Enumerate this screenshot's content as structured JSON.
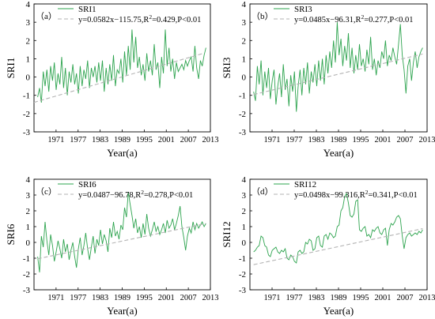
{
  "colors": {
    "series": "#2ea44f",
    "trend": "#b3b3b3",
    "axis": "#000000"
  },
  "chart_data": [
    {
      "type": "line",
      "panel_label": "（a）",
      "xlabel": "Year(a)",
      "ylabel": "SRI1",
      "xlim": [
        1965,
        2013
      ],
      "ylim": [
        -3,
        4
      ],
      "xticks": [
        1971,
        1977,
        1983,
        1989,
        1995,
        2001,
        2007,
        2013
      ],
      "yticks": [
        -3,
        -2,
        -1,
        0,
        1,
        2,
        3,
        4
      ],
      "legend": {
        "placement": "top-left",
        "series_name": "SRI1",
        "trend_name_main": "y=0.0582x−115.75,R",
        "trend_name_sup": "2",
        "trend_name_tail": "=0.429,P<0.01"
      },
      "trend": {
        "slope": 0.0582,
        "intercept": -115.75,
        "x_start": 1965,
        "x_end": 2011
      },
      "series": [
        {
          "name": "SRI1",
          "x_start": 1966,
          "x_end": 2011.8,
          "step": 0.5,
          "values": [
            -1.1,
            -0.6,
            -1.4,
            0.3,
            -0.5,
            0.4,
            -0.8,
            0.6,
            -0.2,
            0.8,
            -0.7,
            0.2,
            -0.4,
            1.1,
            -0.6,
            0.5,
            -1.0,
            0.3,
            -0.3,
            0.7,
            -0.4,
            0.2,
            -0.9,
            0.6,
            -0.5,
            0.4,
            -0.1,
            0.9,
            -0.6,
            0.5,
            0.0,
            0.6,
            -0.3,
            0.8,
            -0.2,
            0.9,
            -0.8,
            0.5,
            -0.4,
            0.7,
            -0.2,
            1.2,
            -0.5,
            0.4,
            0.2,
            1.0,
            -0.3,
            1.4,
            0.1,
            1.7,
            0.4,
            2.6,
            0.8,
            2.2,
            0.5,
            1.1,
            0.1,
            0.7,
            -0.2,
            1.3,
            0.3,
            0.9,
            0.1,
            1.8,
            0.4,
            0.8,
            -0.6,
            1.1,
            0.2,
            2.6,
            0.6,
            1.6,
            0.3,
            1.0,
            -0.1,
            0.8,
            0.3,
            0.5,
            0.7,
            0.4,
            0.9,
            0.6,
            0.9,
            1.1,
            0.3,
            1.7,
            0.5,
            -0.1,
            0.9,
            0.6,
            1.2,
            1.6
          ]
        }
      ]
    },
    {
      "type": "line",
      "panel_label": "（b）",
      "xlabel": "Year(a)",
      "ylabel": "SRI3",
      "xlim": [
        1965,
        2013
      ],
      "ylim": [
        -3,
        4
      ],
      "xticks": [
        1971,
        1977,
        1983,
        1989,
        1995,
        2001,
        2007,
        2013
      ],
      "yticks": [
        -3,
        -2,
        -1,
        0,
        1,
        2,
        3,
        4
      ],
      "legend": {
        "placement": "top-left",
        "series_name": "SRI3",
        "trend_name_main": "y=0.0485x−96.31,R",
        "trend_name_sup": "2",
        "trend_name_tail": "=0.277,P<0.01"
      },
      "trend": {
        "slope": 0.0485,
        "intercept": -96.31,
        "x_start": 1966,
        "x_end": 2011.8
      },
      "series": [
        {
          "name": "SRI3",
          "x_start": 1966,
          "x_end": 2011.8,
          "step": 0.5,
          "values": [
            -0.8,
            -1.3,
            0.6,
            -0.4,
            0.9,
            -1.0,
            0.3,
            -0.6,
            0.5,
            -1.2,
            -0.2,
            0.4,
            -1.5,
            -0.5,
            0.2,
            -1.1,
            0.7,
            -0.7,
            -0.1,
            -1.6,
            0.1,
            -0.8,
            0.3,
            -1.9,
            -0.5,
            0.4,
            -1.0,
            0.5,
            -0.4,
            0.8,
            -0.9,
            0.3,
            -0.3,
            0.7,
            -0.5,
            0.9,
            -0.2,
            1.0,
            -0.4,
            1.2,
            0.2,
            1.4,
            0.5,
            2.0,
            0.8,
            3.0,
            1.2,
            2.1,
            0.6,
            1.7,
            0.9,
            2.4,
            0.5,
            1.6,
            0.2,
            1.2,
            0.4,
            1.8,
            0.6,
            1.0,
            0.3,
            1.5,
            0.7,
            2.2,
            0.4,
            1.0,
            0.1,
            0.9,
            0.5,
            1.4,
            1.0,
            2.0,
            0.6,
            1.2,
            0.9,
            1.6,
            1.1,
            0.7,
            1.8,
            2.9,
            1.2,
            0.4,
            -0.9,
            0.6,
            1.0,
            -0.2,
            0.8,
            1.4,
            0.5,
            1.1,
            1.4,
            1.6
          ]
        }
      ]
    },
    {
      "type": "line",
      "panel_label": "（c）",
      "xlabel": "Year(a)",
      "ylabel": "SRI6",
      "xlim": [
        1965,
        2013
      ],
      "ylim": [
        -3,
        4
      ],
      "xticks": [
        1971,
        1977,
        1983,
        1989,
        1995,
        2001,
        2007,
        2013
      ],
      "yticks": [
        -3,
        -2,
        -1,
        0,
        1,
        2,
        3,
        4
      ],
      "legend": {
        "placement": "top-left",
        "series_name": "SRI6",
        "trend_name_main": "y=0.0487−96.78,R",
        "trend_name_sup": "2",
        "trend_name_tail": "=0.278,P<0.01"
      },
      "trend": {
        "slope": 0.0487,
        "intercept": -96.78,
        "x_start": 1966,
        "x_end": 2011.8
      },
      "series": [
        {
          "name": "SRI6",
          "x_start": 1966,
          "x_end": 2011.8,
          "step": 0.5,
          "values": [
            -0.9,
            -1.9,
            0.4,
            -0.3,
            1.3,
            0.1,
            -0.8,
            0.5,
            -0.2,
            -1.2,
            -0.6,
            0.1,
            -0.4,
            -1.0,
            0.2,
            -0.6,
            -0.1,
            -1.1,
            -0.5,
            0.0,
            -0.9,
            -1.6,
            -0.4,
            0.3,
            -0.8,
            -0.2,
            0.6,
            -0.4,
            -1.1,
            -0.3,
            0.4,
            -0.7,
            0.2,
            -0.2,
            0.8,
            -0.1,
            0.5,
            0.1,
            -0.6,
            0.9,
            0.3,
            1.3,
            0.4,
            0.7,
            0.2,
            1.1,
            0.8,
            2.2,
            1.6,
            3.2,
            2.4,
            1.7,
            0.9,
            1.5,
            0.6,
            1.0,
            0.3,
            1.2,
            0.5,
            1.8,
            0.9,
            0.4,
            0.8,
            1.3,
            0.7,
            1.0,
            0.5,
            0.8,
            1.2,
            0.6,
            1.4,
            0.9,
            1.1,
            1.5,
            0.8,
            1.2,
            1.7,
            2.3,
            1.0,
            0.3,
            -0.5,
            0.4,
            0.9,
            0.6,
            1.3,
            0.8,
            1.2,
            0.9,
            1.1,
            1.3,
            1.0,
            1.2
          ]
        }
      ]
    },
    {
      "type": "line",
      "panel_label": "（d）",
      "xlabel": "Year(a)",
      "ylabel": "SRI12",
      "xlim": [
        1965,
        2013
      ],
      "ylim": [
        -3,
        4
      ],
      "xticks": [
        1971,
        1977,
        1983,
        1989,
        1995,
        2001,
        2007,
        2013
      ],
      "yticks": [
        -3,
        -2,
        -1,
        0,
        1,
        2,
        3,
        4
      ],
      "legend": {
        "placement": "top-left",
        "series_name": "SRI12",
        "trend_name_main": "y=0.0498x−99.316,R",
        "trend_name_sup": "2",
        "trend_name_tail": "=0.341,P<0.01"
      },
      "trend": {
        "slope": 0.0498,
        "intercept": -99.316,
        "x_start": 1966,
        "x_end": 2011.8
      },
      "series": [
        {
          "name": "SRI12",
          "x_start": 1966,
          "x_end": 2011.8,
          "step": 0.5,
          "values": [
            -0.6,
            -0.5,
            -0.3,
            -0.2,
            0.4,
            0.3,
            -0.2,
            -0.3,
            -0.8,
            -0.9,
            -0.5,
            -0.4,
            -0.3,
            -0.6,
            -0.7,
            -0.5,
            -0.6,
            -0.4,
            -1.0,
            -1.1,
            -0.8,
            -0.9,
            -1.2,
            -1.3,
            -0.6,
            -0.5,
            -0.7,
            -0.6,
            0.0,
            -0.1,
            0.2,
            0.1,
            -0.5,
            -0.4,
            0.3,
            0.4,
            -0.2,
            -0.3,
            0.4,
            0.5,
            0.2,
            0.6,
            0.5,
            0.3,
            0.4,
            1.0,
            1.1,
            2.0,
            2.2,
            2.9,
            3.1,
            2.5,
            1.7,
            1.6,
            1.8,
            2.6,
            2.7,
            0.8,
            0.7,
            0.9,
            1.0,
            0.4,
            0.5,
            0.3,
            0.8,
            0.7,
            0.9,
            1.0,
            0.6,
            0.5,
            0.8,
            0.9,
            -0.2,
            0.8,
            1.2,
            1.1,
            1.3,
            1.6,
            1.7,
            1.5,
            0.4,
            -0.4,
            0.3,
            0.5,
            0.6,
            0.4,
            0.5,
            0.6,
            0.5,
            0.7,
            0.6,
            0.8
          ]
        }
      ]
    }
  ]
}
